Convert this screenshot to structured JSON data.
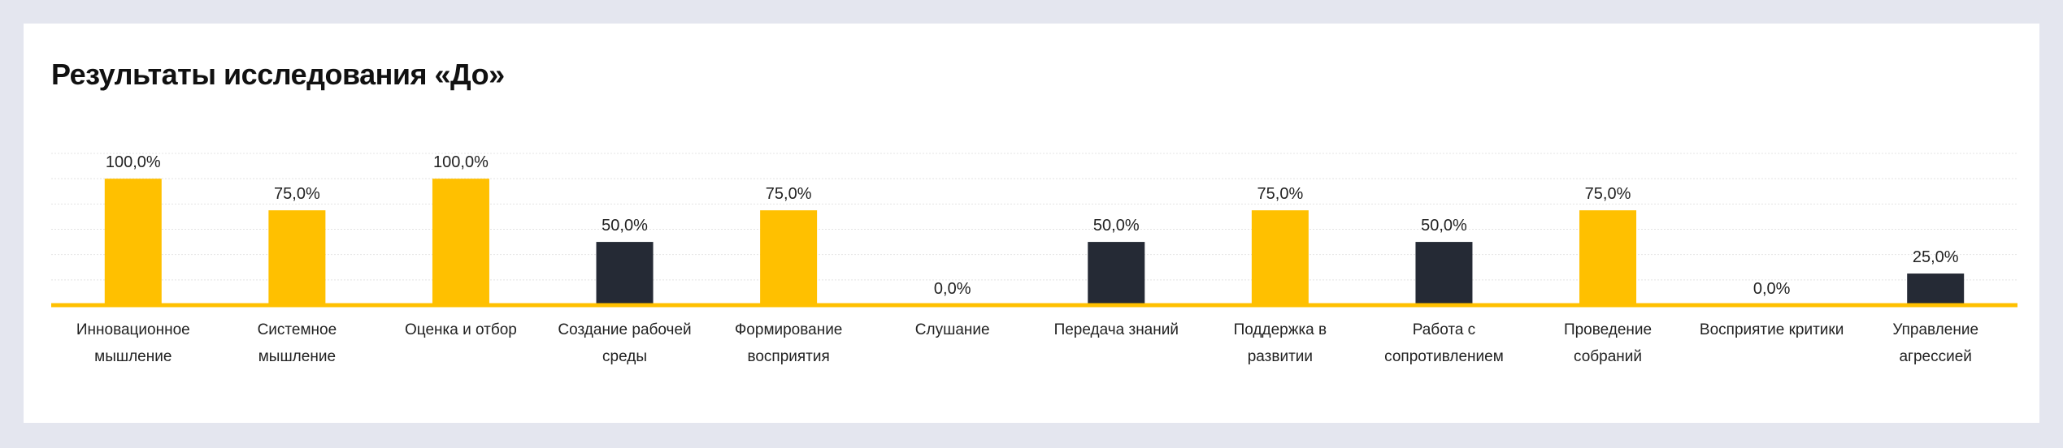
{
  "chart_data": {
    "type": "bar",
    "title": "Результаты исследования «До»",
    "categories": [
      "Инновационное мышление",
      "Системное мышление",
      "Оценка и отбор",
      "Создание рабочей среды",
      "Формирование восприятия",
      "Слушание",
      "Передача знаний",
      "Поддержка в развитии",
      "Работа с сопротивлением",
      "Проведение собраний",
      "Восприятие критики",
      "Управление агрессией"
    ],
    "values": [
      100,
      75,
      100,
      50,
      75,
      0,
      50,
      75,
      50,
      75,
      0,
      25
    ],
    "value_labels": [
      "100,0%",
      "75,0%",
      "100,0%",
      "50,0%",
      "75,0%",
      "0,0%",
      "50,0%",
      "75,0%",
      "50,0%",
      "75,0%",
      "0,0%",
      "25,0%"
    ],
    "colors": [
      "#ffc000",
      "#ffc000",
      "#ffc000",
      "#252a35",
      "#ffc000",
      "#ffc000",
      "#252a35",
      "#ffc000",
      "#252a35",
      "#ffc000",
      "#ffc000",
      "#252a35"
    ],
    "ylim": [
      0,
      120
    ],
    "yticks": [
      0,
      20,
      40,
      60,
      80,
      100,
      120
    ],
    "grid": true
  }
}
